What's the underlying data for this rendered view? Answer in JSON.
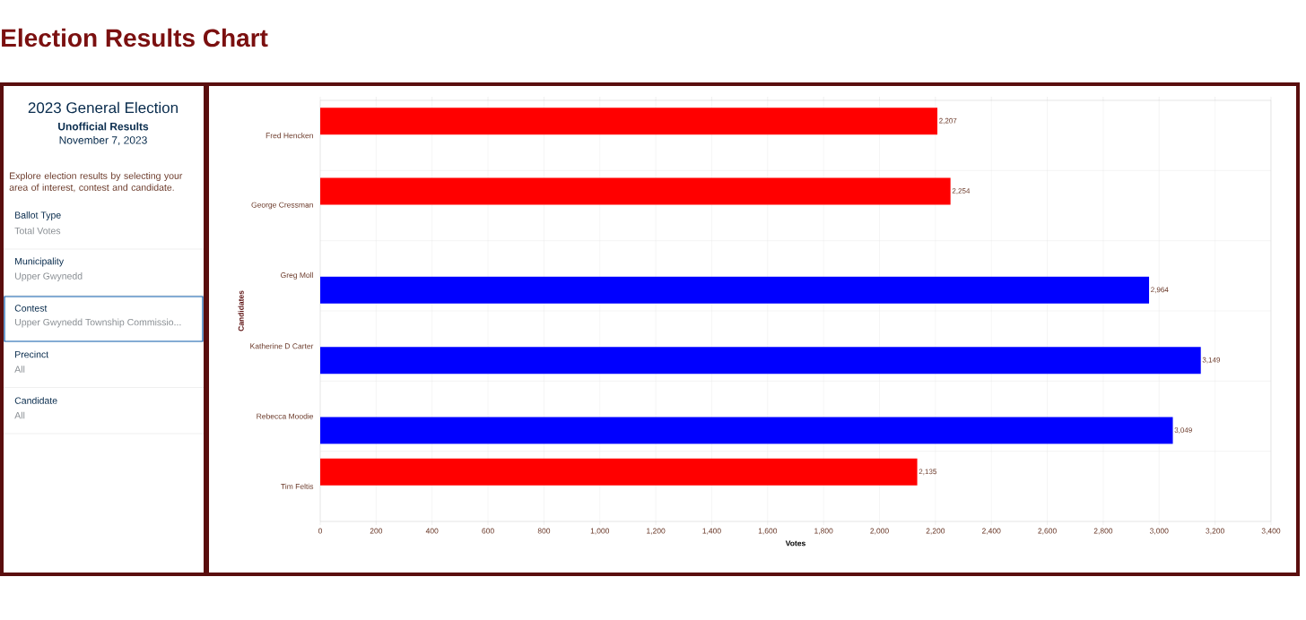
{
  "chart_data": [
    {
      "type": "other",
      "title": "2023 General Election",
      "subtitle": "Unofficial Results",
      "annotations": [
        "November 7, 2023",
        "Explore election results by selecting your area of interest, contest and candidate.",
        "Ballot Type",
        "Total Votes",
        "Municipality",
        "Upper Gwynedd",
        "Contest",
        "Upper Gwynedd Township Commissio...",
        "Precinct",
        "All",
        "Candidate",
        "All"
      ]
    },
    {
      "type": "bar",
      "orientation": "horizontal",
      "title": "Election Results Chart",
      "xlabel": "Votes",
      "ylabel": "Candidates",
      "categories": [
        "Fred Hencken",
        "George Cressman",
        "Greg Moll",
        "Katherine D Carter",
        "Rebecca Moodie",
        "Tim Feltis"
      ],
      "series": [
        {
          "color": "#ff0000",
          "values": [
            2207,
            2254,
            null,
            null,
            null,
            2135
          ],
          "value_labels": [
            "2,207",
            "2,254",
            null,
            null,
            null,
            "2,135"
          ]
        },
        {
          "color": "#0000ff",
          "values": [
            null,
            null,
            2964,
            3149,
            3049,
            null
          ],
          "value_labels": [
            null,
            null,
            "2,964",
            "3,149",
            "3,049",
            null
          ]
        }
      ],
      "xlim": [
        0,
        3400
      ],
      "xticks": [
        0,
        200,
        400,
        600,
        800,
        {
          "value": 1000,
          "label": "1,000"
        },
        {
          "value": 1200,
          "label": "1,200"
        },
        {
          "value": 1400,
          "label": "1,400"
        },
        {
          "value": 1600,
          "label": "1,600"
        },
        {
          "value": 1800,
          "label": "1,800"
        },
        {
          "value": 2000,
          "label": "2,000"
        },
        {
          "value": 2200,
          "label": "2,200"
        },
        {
          "value": 2400,
          "label": "2,400"
        },
        {
          "value": 2600,
          "label": "2,600"
        },
        {
          "value": 2800,
          "label": "2,800"
        },
        {
          "value": 3000,
          "label": "3,000"
        },
        {
          "value": 3200,
          "label": "3,200"
        },
        {
          "value": 3400,
          "label": "3,400"
        }
      ],
      "grid": true
    }
  ]
}
